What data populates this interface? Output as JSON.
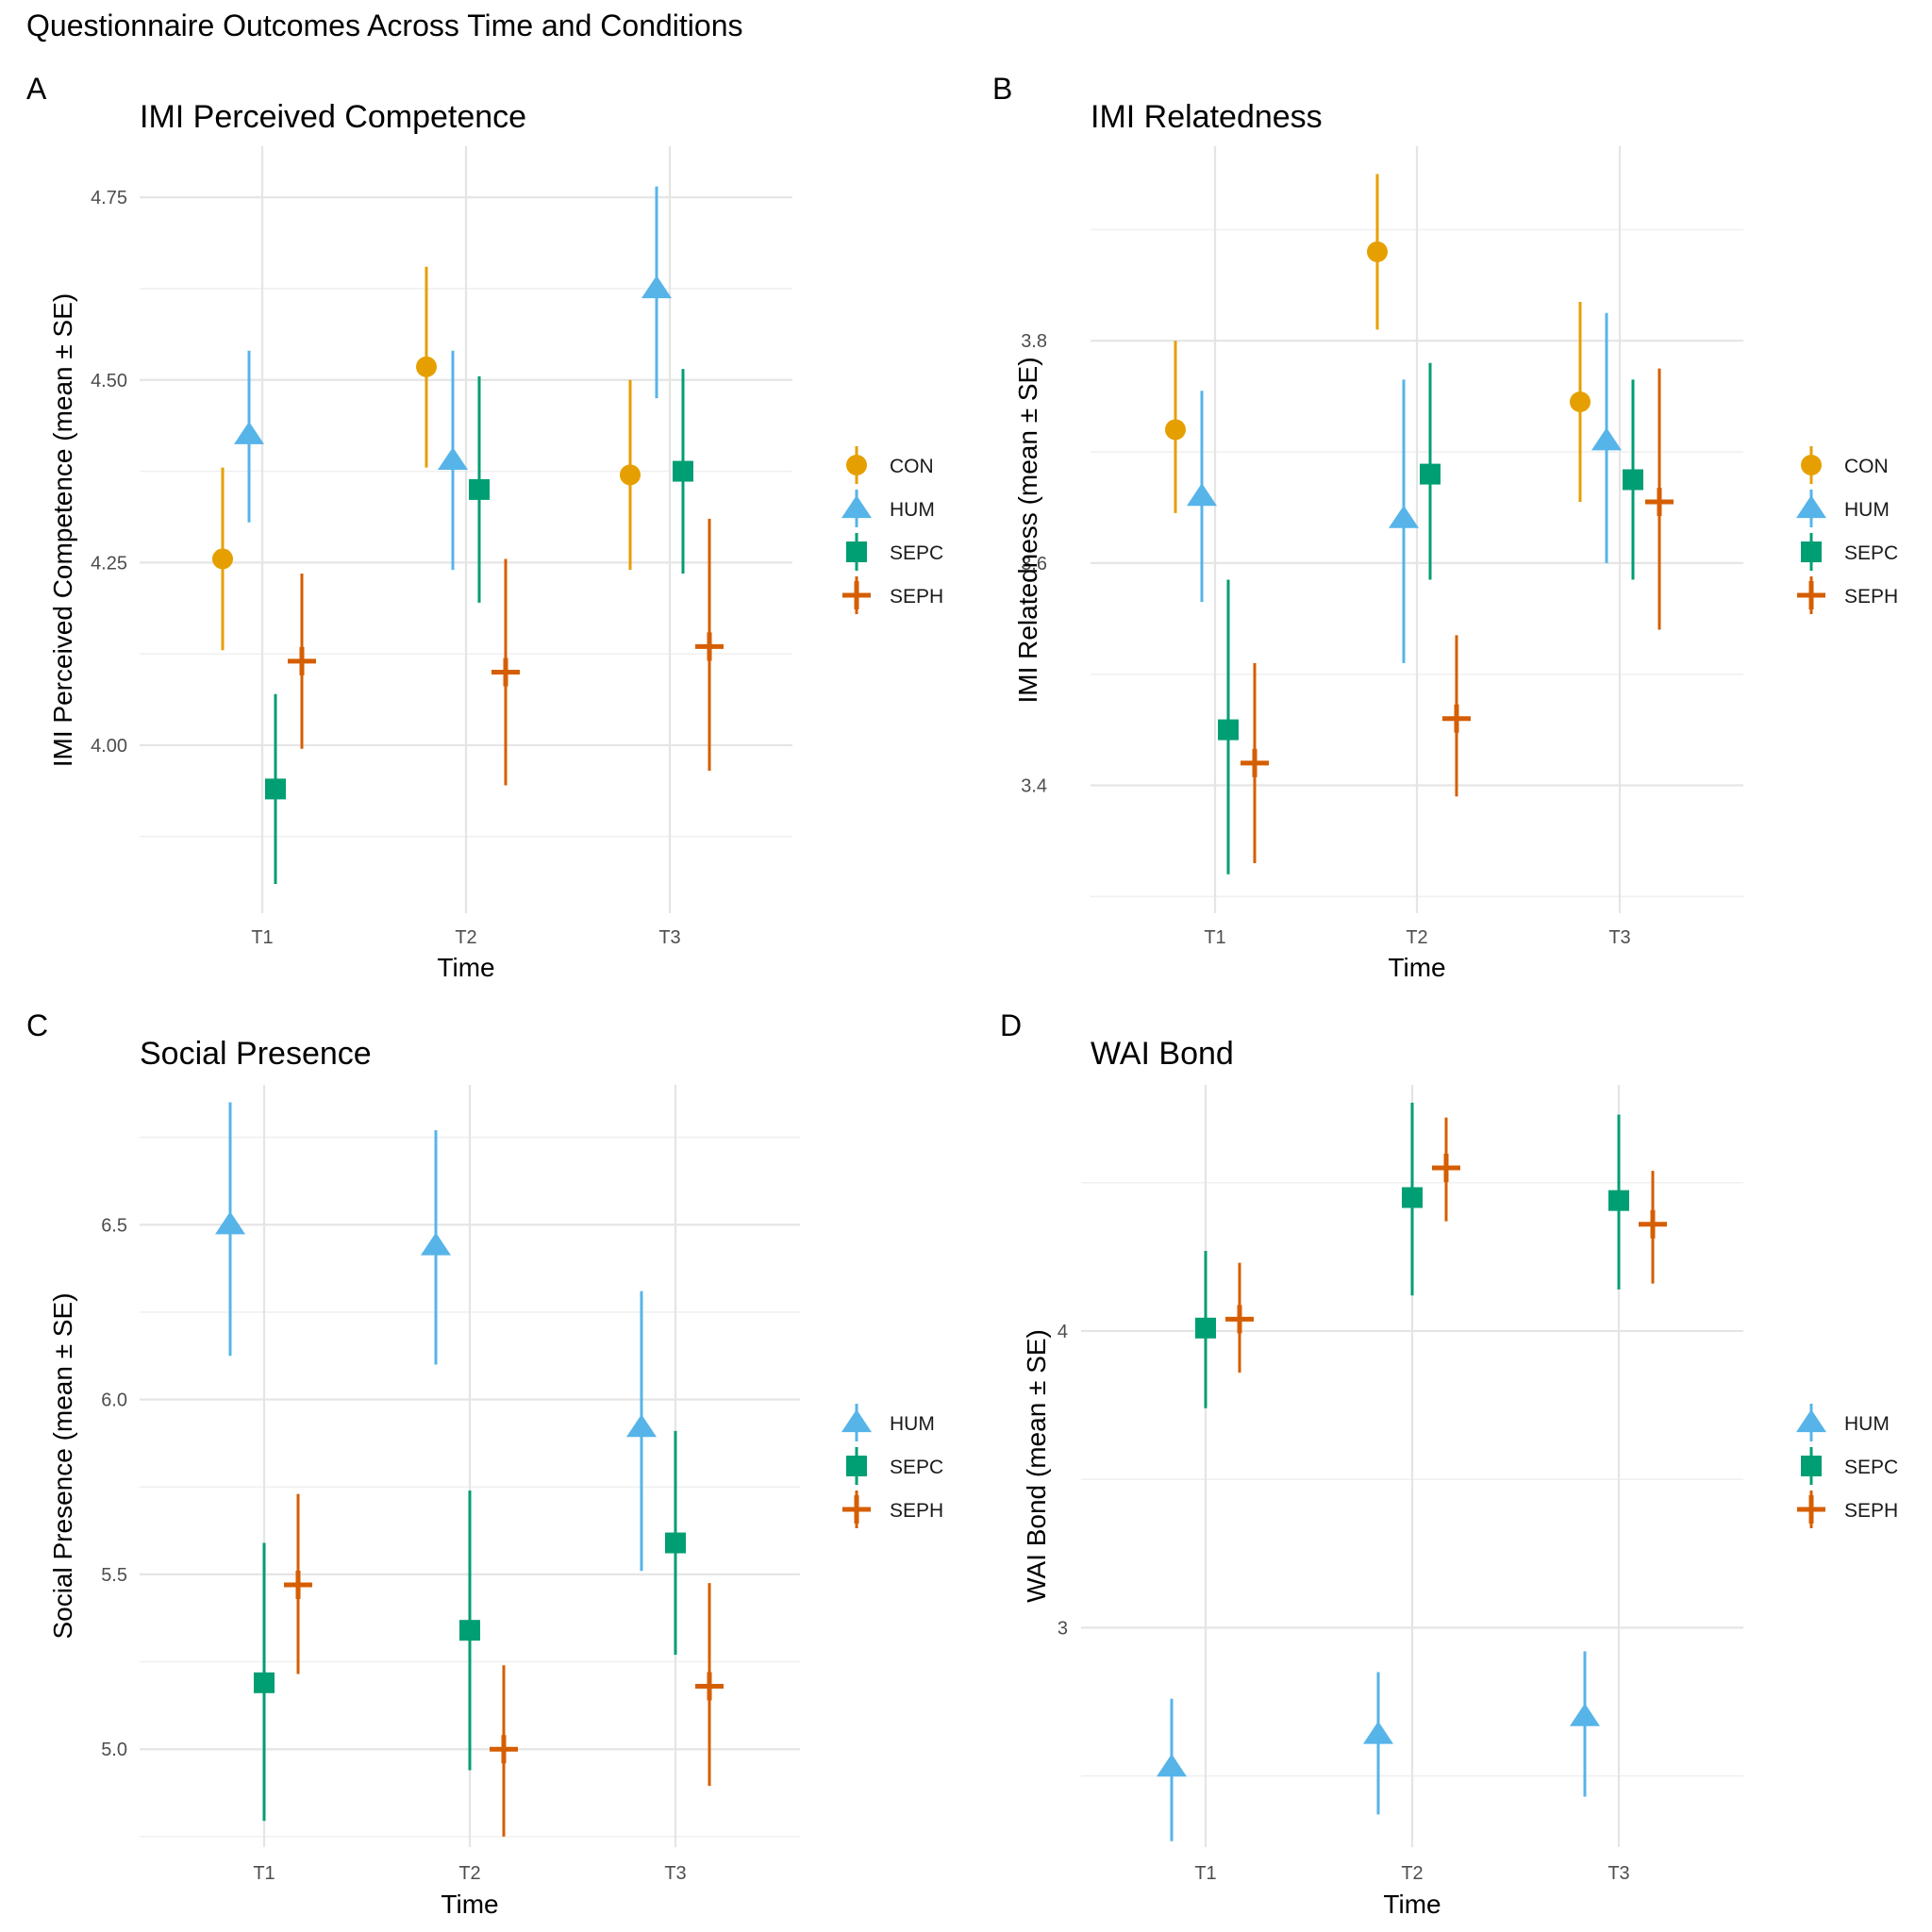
{
  "figure_title": "Questionnaire Outcomes Across Time and Conditions",
  "colors": {
    "CON": "#E69F00",
    "HUM": "#56B4E9",
    "SEPC": "#009E73",
    "SEPH": "#D55E00",
    "grid_major": "#e5e5e5",
    "grid_minor": "#f0f0f0"
  },
  "chart_data": [
    {
      "type": "scatter",
      "panel": "A",
      "title": "IMI Perceived Competence",
      "xlabel": "Time",
      "ylabel": "IMI Perceived Competence (mean ± SE)",
      "categories": [
        "T1",
        "T2",
        "T3"
      ],
      "ylim": [
        3.77,
        4.82
      ],
      "yticks": [
        4.0,
        4.25,
        4.5,
        4.75
      ],
      "ytick_labels": [
        "4.00",
        "4.25",
        "4.50",
        "4.75"
      ],
      "legend": [
        "CON",
        "HUM",
        "SEPC",
        "SEPH"
      ],
      "series": [
        {
          "name": "CON",
          "mean": [
            4.255,
            4.518,
            4.37
          ],
          "lower": [
            4.13,
            4.38,
            4.24
          ],
          "upper": [
            4.38,
            4.655,
            4.5
          ]
        },
        {
          "name": "HUM",
          "mean": [
            4.425,
            4.39,
            4.625
          ],
          "lower": [
            4.305,
            4.24,
            4.475
          ],
          "upper": [
            4.54,
            4.54,
            4.765
          ]
        },
        {
          "name": "SEPC",
          "mean": [
            3.94,
            4.35,
            4.375
          ],
          "lower": [
            3.81,
            4.195,
            4.235
          ],
          "upper": [
            4.07,
            4.505,
            4.515
          ]
        },
        {
          "name": "SEPH",
          "mean": [
            4.115,
            4.1,
            4.135
          ],
          "lower": [
            3.995,
            3.945,
            3.965
          ],
          "upper": [
            4.235,
            4.255,
            4.31
          ]
        }
      ]
    },
    {
      "type": "scatter",
      "panel": "B",
      "title": "IMI Relatedness",
      "xlabel": "Time",
      "ylabel": "IMI Relatedness (mean ± SE)",
      "categories": [
        "T1",
        "T2",
        "T3"
      ],
      "ylim": [
        3.285,
        3.975
      ],
      "yticks": [
        3.4,
        3.6,
        3.8
      ],
      "ytick_labels": [
        "3.4",
        "3.6",
        "3.8"
      ],
      "legend": [
        "CON",
        "HUM",
        "SEPC",
        "SEPH"
      ],
      "series": [
        {
          "name": "CON",
          "mean": [
            3.72,
            3.88,
            3.745
          ],
          "lower": [
            3.645,
            3.81,
            3.655
          ],
          "upper": [
            3.8,
            3.95,
            3.835
          ]
        },
        {
          "name": "HUM",
          "mean": [
            3.66,
            3.64,
            3.71
          ],
          "lower": [
            3.565,
            3.51,
            3.6
          ],
          "upper": [
            3.755,
            3.765,
            3.825
          ]
        },
        {
          "name": "SEPC",
          "mean": [
            3.45,
            3.68,
            3.675
          ],
          "lower": [
            3.32,
            3.585,
            3.585
          ],
          "upper": [
            3.585,
            3.78,
            3.765
          ]
        },
        {
          "name": "SEPH",
          "mean": [
            3.42,
            3.46,
            3.655
          ],
          "lower": [
            3.33,
            3.39,
            3.54
          ],
          "upper": [
            3.51,
            3.535,
            3.775
          ]
        }
      ]
    },
    {
      "type": "scatter",
      "panel": "C",
      "title": "Social Presence",
      "xlabel": "Time",
      "ylabel": "Social Presence (mean ± SE)",
      "categories": [
        "T1",
        "T2",
        "T3"
      ],
      "ylim": [
        4.72,
        6.9
      ],
      "yticks": [
        5.0,
        5.5,
        6.0,
        6.5
      ],
      "ytick_labels": [
        "5.0",
        "5.5",
        "6.0",
        "6.5"
      ],
      "legend": [
        "HUM",
        "SEPC",
        "SEPH"
      ],
      "series": [
        {
          "name": "HUM",
          "mean": [
            6.5,
            6.44,
            5.92
          ],
          "lower": [
            6.125,
            6.1,
            5.51
          ],
          "upper": [
            6.85,
            6.77,
            6.31
          ]
        },
        {
          "name": "SEPC",
          "mean": [
            5.19,
            5.34,
            5.59
          ],
          "lower": [
            4.795,
            4.94,
            5.27
          ],
          "upper": [
            5.59,
            5.74,
            5.91
          ]
        },
        {
          "name": "SEPH",
          "mean": [
            5.47,
            5.0,
            5.18
          ],
          "lower": [
            5.215,
            4.75,
            4.895
          ],
          "upper": [
            5.73,
            5.24,
            5.475
          ]
        }
      ]
    },
    {
      "type": "scatter",
      "panel": "D",
      "title": "WAI Bond",
      "xlabel": "Time",
      "ylabel": "WAI Bond (mean ± SE)",
      "categories": [
        "T1",
        "T2",
        "T3"
      ],
      "ylim": [
        2.26,
        4.83
      ],
      "yticks": [
        3,
        4
      ],
      "ytick_labels": [
        "3",
        "4"
      ],
      "legend": [
        "HUM",
        "SEPC",
        "SEPH"
      ],
      "series": [
        {
          "name": "HUM",
          "mean": [
            2.53,
            2.64,
            2.7
          ],
          "lower": [
            2.28,
            2.37,
            2.43
          ],
          "upper": [
            2.76,
            2.85,
            2.92
          ]
        },
        {
          "name": "SEPC",
          "mean": [
            4.01,
            4.45,
            4.44
          ],
          "lower": [
            3.74,
            4.12,
            4.14
          ],
          "upper": [
            4.27,
            4.77,
            4.73
          ]
        },
        {
          "name": "SEPH",
          "mean": [
            4.04,
            4.55,
            4.36
          ],
          "lower": [
            3.86,
            4.37,
            4.16
          ],
          "upper": [
            4.23,
            4.72,
            4.54
          ]
        }
      ]
    }
  ]
}
